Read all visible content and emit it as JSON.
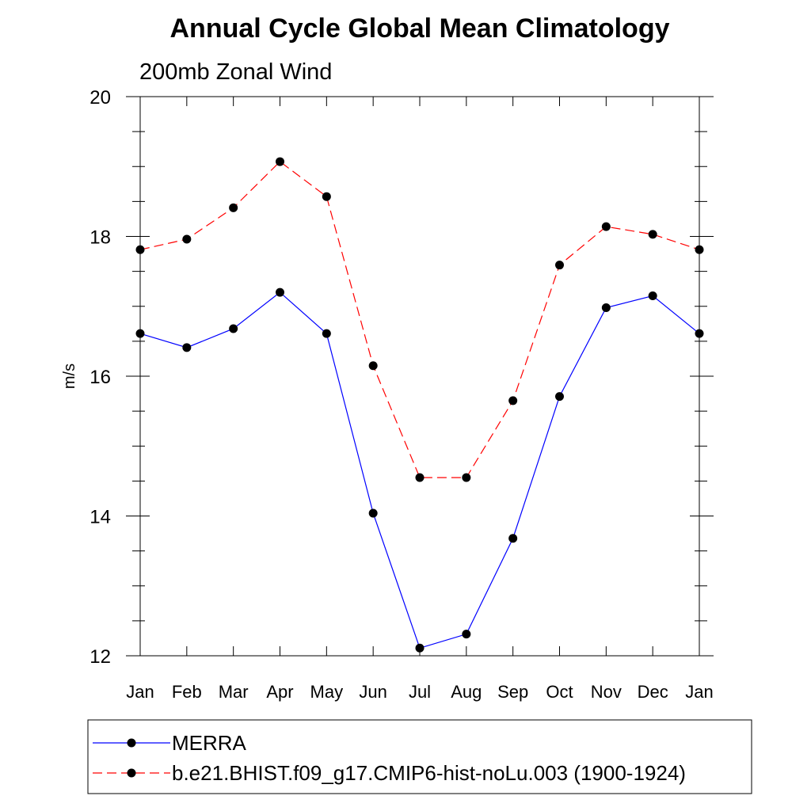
{
  "chart_data": {
    "type": "line",
    "title": "Annual Cycle Global Mean Climatology",
    "subtitle": "200mb Zonal Wind",
    "xlabel": "",
    "ylabel": "m/s",
    "categories": [
      "Jan",
      "Feb",
      "Mar",
      "Apr",
      "May",
      "Jun",
      "Jul",
      "Aug",
      "Sep",
      "Oct",
      "Nov",
      "Dec",
      "Jan"
    ],
    "ylim": [
      12,
      20
    ],
    "yticks": [
      "12",
      "14",
      "16",
      "18",
      "20"
    ],
    "grid": false,
    "legend_position": "bottom",
    "series": [
      {
        "name": "MERRA",
        "color": "#0000ff",
        "line_style": "solid",
        "marker": "filled-circle",
        "values": [
          16.61,
          16.41,
          16.68,
          17.2,
          16.61,
          14.04,
          12.11,
          12.31,
          13.68,
          15.71,
          16.98,
          17.15,
          16.61
        ]
      },
      {
        "name": "b.e21.BHIST.f09_g17.CMIP6-hist-noLu.003 (1900-1924)",
        "color": "#ff0000",
        "line_style": "dashed",
        "marker": "filled-circle",
        "values": [
          17.81,
          17.96,
          18.41,
          19.07,
          18.57,
          16.15,
          14.55,
          14.55,
          15.65,
          17.59,
          18.14,
          18.03,
          17.81
        ]
      }
    ]
  }
}
